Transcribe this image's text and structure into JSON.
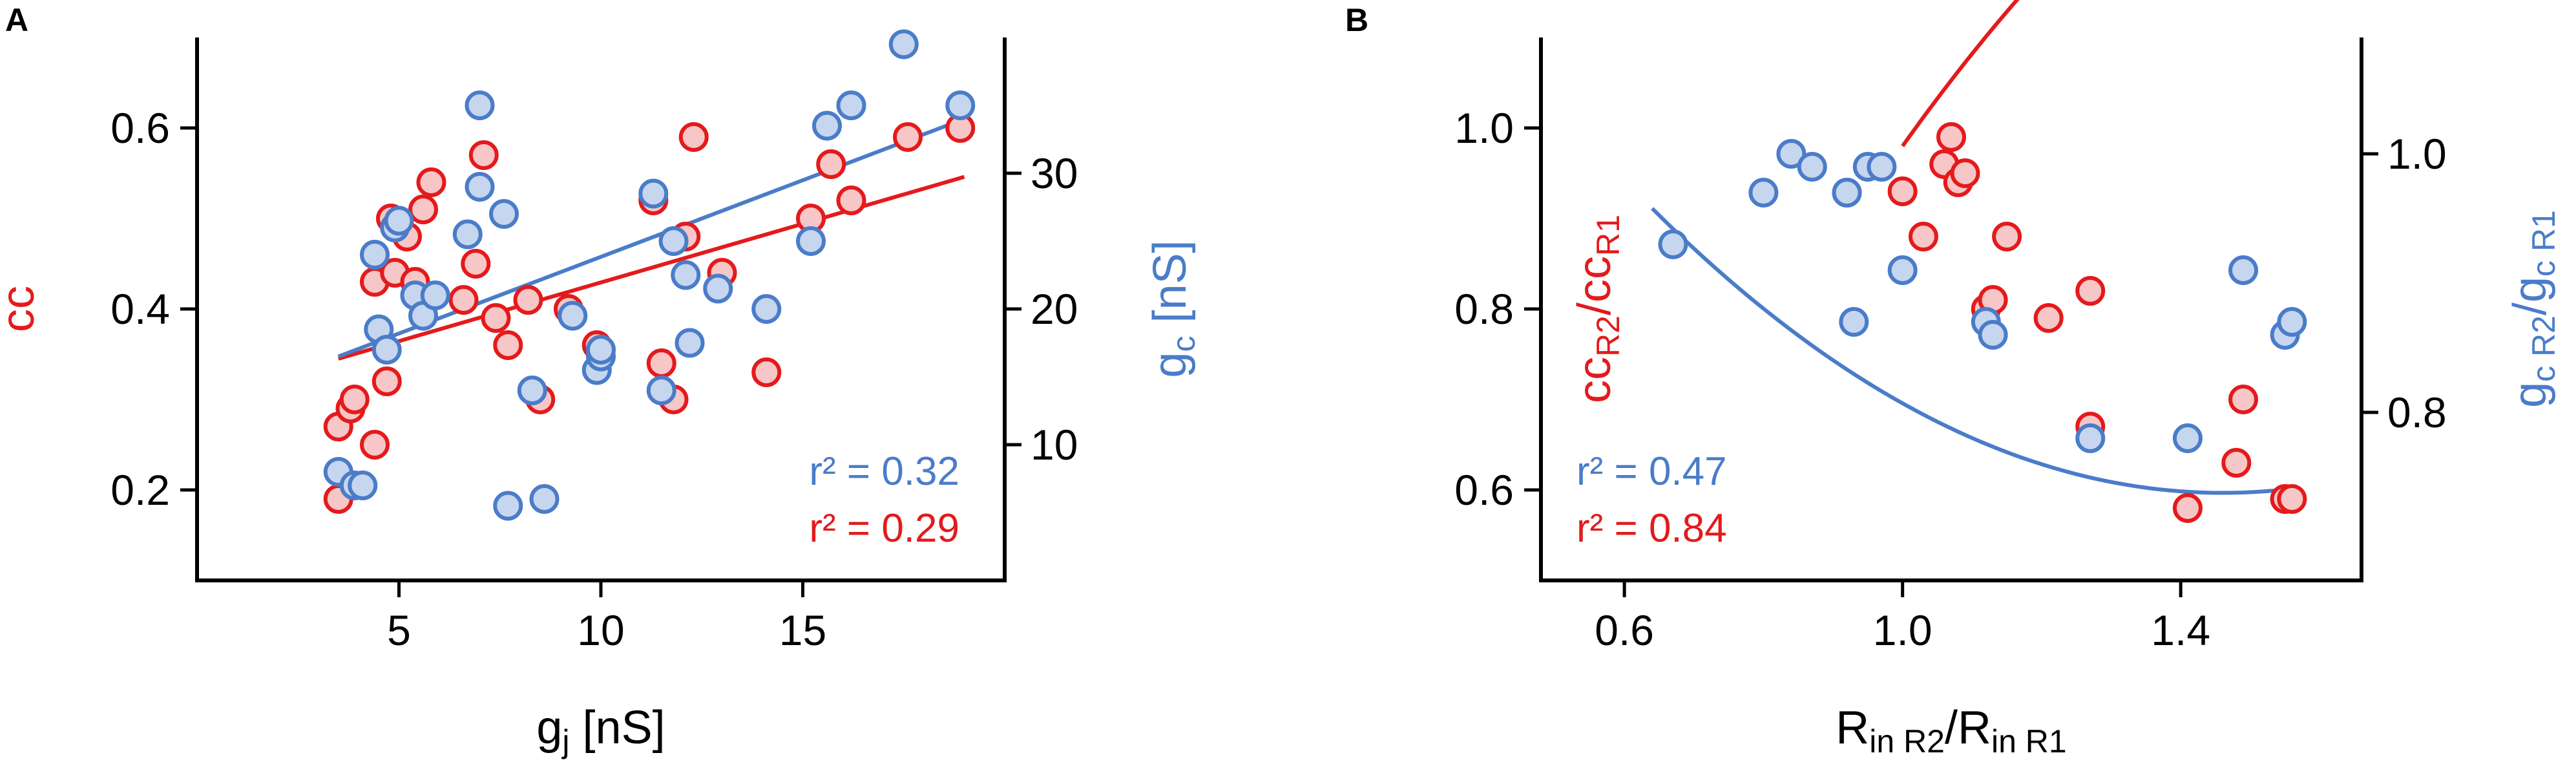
{
  "colors": {
    "red": "#e41a1c",
    "red_fill": "#f7c6c6",
    "blue": "#4a7cc9",
    "blue_fill": "#c6d6ee",
    "axis": "#000000"
  },
  "chart_data": [
    {
      "panel": "A",
      "type": "scatter",
      "xlim": [
        0,
        20
      ],
      "ylim_left": [
        0.1,
        0.7
      ],
      "ylim_right": [
        0,
        40
      ],
      "xticks": [
        "5",
        "10",
        "15"
      ],
      "yticks_left": [
        "0.2",
        "0.4",
        "0.6"
      ],
      "yticks_right": [
        "10",
        "20",
        "30"
      ],
      "xlabel": {
        "base": "g",
        "sub": "j",
        "rest": " [nS]"
      },
      "ylabel_left": {
        "base": "cc"
      },
      "ylabel_right": {
        "base": "g",
        "sub": "c",
        "rest": " [nS]"
      },
      "r2": [
        {
          "text": "r² = 0.32",
          "color": "blue"
        },
        {
          "text": "r² = 0.29",
          "color": "red"
        }
      ],
      "series": [
        {
          "axis": "left",
          "color": "red",
          "points": [
            [
              3.5,
              0.19
            ],
            [
              3.5,
              0.27
            ],
            [
              3.8,
              0.29
            ],
            [
              3.9,
              0.3
            ],
            [
              4.4,
              0.25
            ],
            [
              4.4,
              0.43
            ],
            [
              4.7,
              0.32
            ],
            [
              4.8,
              0.5
            ],
            [
              4.9,
              0.44
            ],
            [
              5.2,
              0.48
            ],
            [
              5.4,
              0.43
            ],
            [
              5.6,
              0.51
            ],
            [
              5.8,
              0.54
            ],
            [
              6.6,
              0.41
            ],
            [
              6.9,
              0.45
            ],
            [
              7.1,
              0.57
            ],
            [
              7.4,
              0.39
            ],
            [
              7.7,
              0.36
            ],
            [
              8.2,
              0.41
            ],
            [
              8.5,
              0.3
            ],
            [
              9.2,
              0.4
            ],
            [
              9.9,
              0.36
            ],
            [
              11.3,
              0.52
            ],
            [
              11.5,
              0.34
            ],
            [
              11.8,
              0.3
            ],
            [
              12.1,
              0.48
            ],
            [
              12.3,
              0.59
            ],
            [
              13.0,
              0.44
            ],
            [
              14.1,
              0.33
            ],
            [
              15.2,
              0.5
            ],
            [
              15.7,
              0.56
            ],
            [
              16.2,
              0.52
            ],
            [
              17.6,
              0.59
            ],
            [
              18.9,
              0.6
            ]
          ]
        },
        {
          "axis": "right",
          "color": "blue",
          "points": [
            [
              3.5,
              8.0
            ],
            [
              3.9,
              7.0
            ],
            [
              4.1,
              7.0
            ],
            [
              4.5,
              18.5
            ],
            [
              4.4,
              24.0
            ],
            [
              4.7,
              17.0
            ],
            [
              4.9,
              26.0
            ],
            [
              5.0,
              26.5
            ],
            [
              5.4,
              21.0
            ],
            [
              5.6,
              19.5
            ],
            [
              5.9,
              21.0
            ],
            [
              6.7,
              25.5
            ],
            [
              7.0,
              29.0
            ],
            [
              7.0,
              35.0
            ],
            [
              7.6,
              27.0
            ],
            [
              7.7,
              5.5
            ],
            [
              8.3,
              14.0
            ],
            [
              8.6,
              6.0
            ],
            [
              9.3,
              19.5
            ],
            [
              9.9,
              15.5
            ],
            [
              10.0,
              16.5
            ],
            [
              10.0,
              17.0
            ],
            [
              11.3,
              28.5
            ],
            [
              11.5,
              14.0
            ],
            [
              11.8,
              25.0
            ],
            [
              12.1,
              22.5
            ],
            [
              12.2,
              17.5
            ],
            [
              12.9,
              21.5
            ],
            [
              14.1,
              20.0
            ],
            [
              15.2,
              25.0
            ],
            [
              15.6,
              33.5
            ],
            [
              16.2,
              35.0
            ],
            [
              17.5,
              39.5
            ],
            [
              18.9,
              35.0
            ]
          ]
        }
      ],
      "fits": [
        {
          "color": "red",
          "axis": "left",
          "x": [
            3.5,
            19.0
          ],
          "y": [
            0.345,
            0.546
          ]
        },
        {
          "color": "blue",
          "axis": "right",
          "x": [
            3.5,
            19.0
          ],
          "y": [
            16.5,
            34.0
          ]
        }
      ]
    },
    {
      "panel": "B",
      "type": "scatter",
      "xlim": [
        0.48,
        1.66
      ],
      "ylim_left": [
        0.5,
        1.1
      ],
      "ylim_right": [
        0.67,
        1.09
      ],
      "xticks": [
        "0.6",
        "1.0",
        "1.4"
      ],
      "yticks_left": [
        "0.6",
        "0.8",
        "1.0"
      ],
      "yticks_right": [
        "0.8",
        "1.0"
      ],
      "xlabel": {
        "parts": [
          [
            "R",
            ""
          ],
          [
            "in R2",
            "sub"
          ],
          [
            "/R",
            ""
          ],
          [
            "in R1",
            "sub"
          ]
        ]
      },
      "ylabel_left": {
        "parts": [
          [
            "cc",
            ""
          ],
          [
            "R2",
            "sub"
          ],
          [
            "/cc",
            ""
          ],
          [
            "R1",
            "sub"
          ]
        ]
      },
      "ylabel_right": {
        "parts": [
          [
            "g",
            ""
          ],
          [
            "c R2",
            "sub"
          ],
          [
            "/g",
            ""
          ],
          [
            "c R1",
            "sub"
          ]
        ]
      },
      "r2": [
        {
          "text": "r² = 0.47",
          "color": "blue"
        },
        {
          "text": "r² = 0.84",
          "color": "red"
        }
      ],
      "series": [
        {
          "axis": "left",
          "color": "red",
          "points": [
            [
              1.0,
              0.93
            ],
            [
              1.03,
              0.88
            ],
            [
              1.06,
              0.96
            ],
            [
              1.07,
              0.99
            ],
            [
              1.08,
              0.94
            ],
            [
              1.09,
              0.95
            ],
            [
              1.12,
              0.8
            ],
            [
              1.13,
              0.81
            ],
            [
              1.15,
              0.88
            ],
            [
              1.21,
              0.79
            ],
            [
              1.27,
              0.82
            ],
            [
              1.27,
              0.67
            ],
            [
              1.41,
              0.58
            ],
            [
              1.48,
              0.63
            ],
            [
              1.49,
              0.7
            ],
            [
              1.55,
              0.59
            ],
            [
              1.56,
              0.59
            ]
          ]
        },
        {
          "axis": "right",
          "color": "blue",
          "points": [
            [
              0.67,
              0.93
            ],
            [
              0.8,
              0.97
            ],
            [
              0.84,
              1.0
            ],
            [
              0.87,
              0.99
            ],
            [
              0.92,
              0.97
            ],
            [
              0.92,
              0.97
            ],
            [
              0.93,
              0.87
            ],
            [
              0.95,
              0.99
            ],
            [
              0.97,
              0.99
            ],
            [
              1.0,
              0.91
            ],
            [
              1.12,
              0.87
            ],
            [
              1.13,
              0.86
            ],
            [
              1.27,
              0.78
            ],
            [
              1.41,
              0.78
            ],
            [
              1.49,
              0.91
            ],
            [
              1.55,
              0.86
            ],
            [
              1.56,
              0.87
            ]
          ]
        }
      ],
      "fits": [
        {
          "color": "red",
          "axis": "left",
          "curve": "quadratic",
          "coef": [
            -0.7,
            2.28,
            -0.6
          ],
          "x": [
            1.0,
            1.56
          ]
        },
        {
          "color": "blue",
          "axis": "right",
          "curve": "quadratic",
          "coef": [
            1.435,
            -0.955,
            0.327
          ],
          "x": [
            0.64,
            1.55
          ]
        }
      ]
    }
  ]
}
